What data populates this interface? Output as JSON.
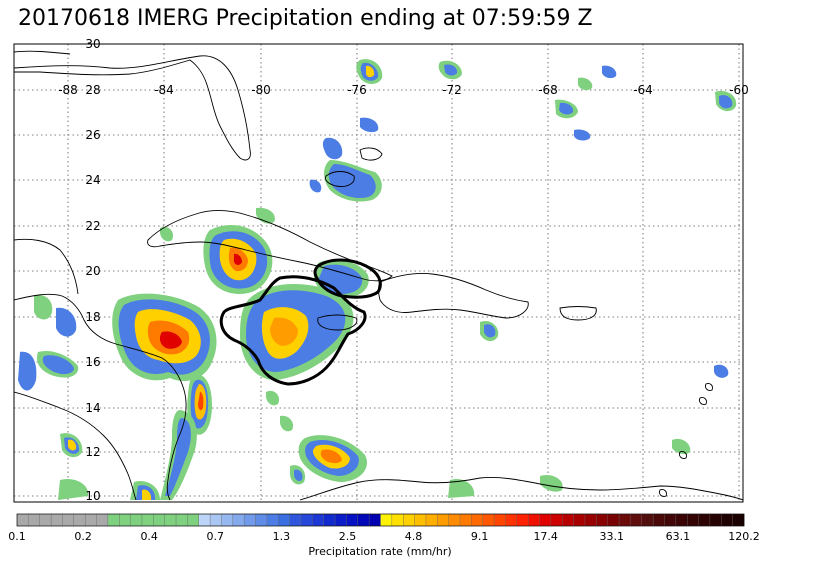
{
  "title": "20170618 IMERG Precipitation ending at 07:59:59 Z",
  "lat_labels": [
    "30",
    "28",
    "26",
    "24",
    "22",
    "20",
    "18",
    "16",
    "14",
    "12",
    "10"
  ],
  "lon_labels": [
    "-88",
    "-84",
    "-80",
    "-76",
    "-72",
    "-68",
    "-64",
    "-60"
  ],
  "colorbar": {
    "title": "Precipitation rate (mm/hr)",
    "tick_labels": [
      "0.1",
      "0.2",
      "0.4",
      "0.7",
      "1.3",
      "2.5",
      "4.8",
      "9.1",
      "17.4",
      "33.1",
      "63.1",
      "120.2"
    ],
    "colors": [
      "#a9a9a9",
      "#a9a9a9",
      "#a9a9a9",
      "#a9a9a9",
      "#a9a9a9",
      "#a9a9a9",
      "#a9a9a9",
      "#a9a9a9",
      "#7fd17f",
      "#7fd17f",
      "#7fd17f",
      "#7fd17f",
      "#7fd17f",
      "#7fd17f",
      "#7fd17f",
      "#7fd17f",
      "#bcd4f5",
      "#a9c5f2",
      "#96b7ef",
      "#84a9ec",
      "#719aea",
      "#5e8ce7",
      "#4c7de4",
      "#3a6fe1",
      "#2e57dd",
      "#2548d8",
      "#1c39d3",
      "#132bce",
      "#0b1dc8",
      "#0511c2",
      "#0008ba",
      "#0000b0",
      "#fff200",
      "#ffe100",
      "#ffd000",
      "#ffbf00",
      "#ffae00",
      "#ff9d00",
      "#ff8c00",
      "#ff7b00",
      "#ff6a00",
      "#ff5800",
      "#ff4600",
      "#ff3400",
      "#ff2200",
      "#f01000",
      "#e00000",
      "#cc0000",
      "#b80000",
      "#a80000",
      "#980000",
      "#880000",
      "#780000",
      "#6c0a0a",
      "#5f0d0d",
      "#520d0d",
      "#4a0808",
      "#420606",
      "#3a0404",
      "#330303",
      "#2c0202",
      "#260101",
      "#200000",
      "#1a0000"
    ]
  }
}
